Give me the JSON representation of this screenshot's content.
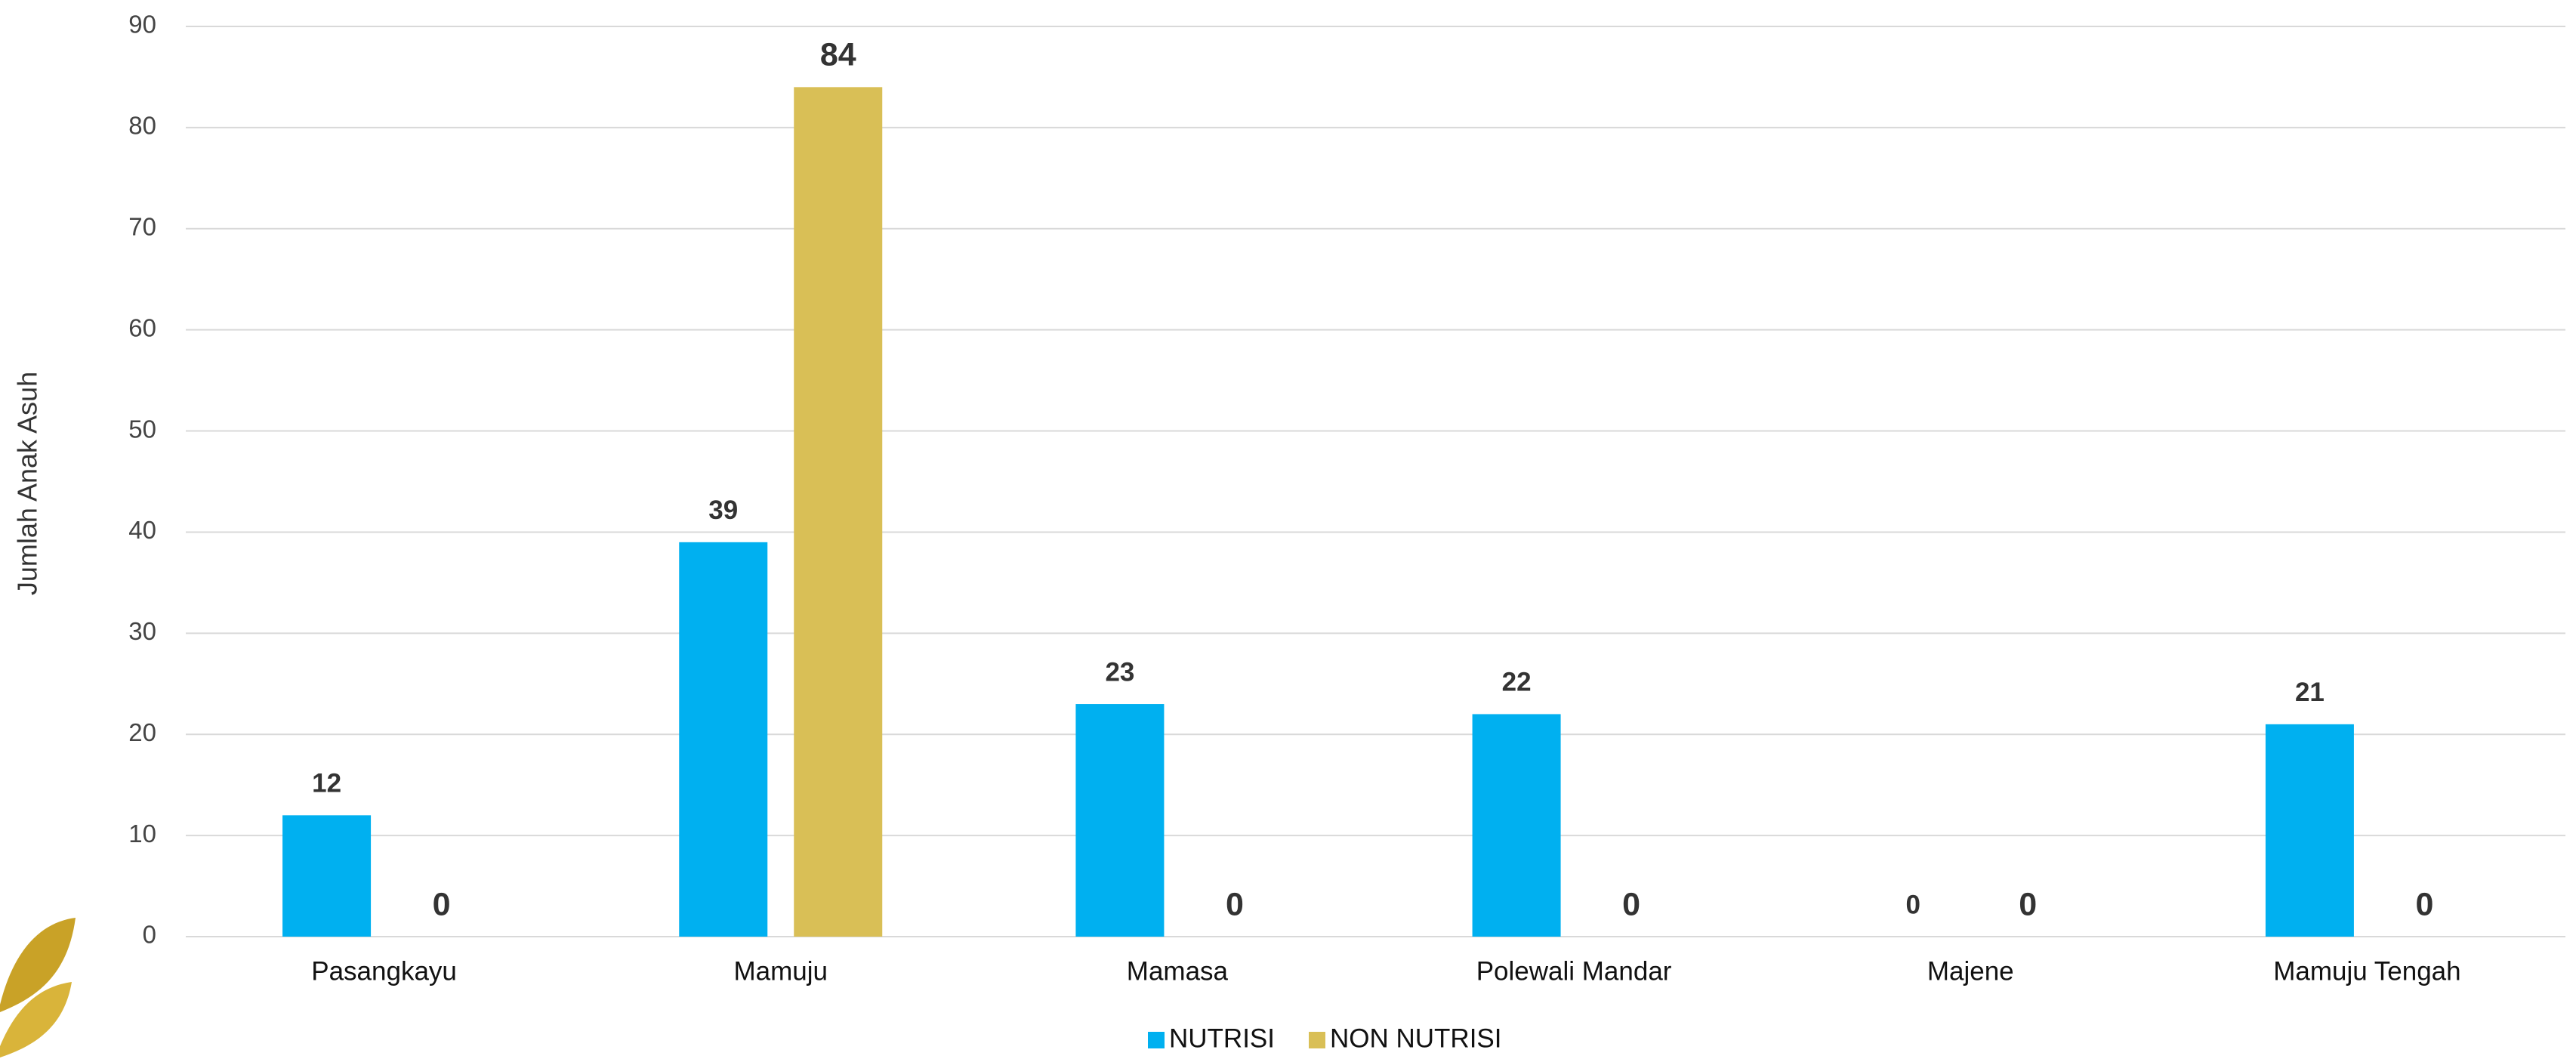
{
  "chart_data": {
    "type": "bar",
    "y_axis_label": "Jumlah Anak Asuh",
    "categories": [
      "Pasangkayu",
      "Mamuju",
      "Mamasa",
      "Polewali Mandar",
      "Majene",
      "Mamuju Tengah"
    ],
    "series": [
      {
        "name": "NUTRISI",
        "color": "#00b0f0",
        "values": [
          12,
          39,
          23,
          22,
          0,
          21
        ]
      },
      {
        "name": "NON NUTRISI",
        "color": "#d9bf56",
        "values": [
          0,
          84,
          0,
          0,
          0,
          0
        ]
      }
    ],
    "ylim": [
      0,
      90
    ],
    "yticks": [
      0,
      10,
      20,
      30,
      40,
      50,
      60,
      70,
      80,
      90
    ],
    "grid": true,
    "legend": "bottom"
  }
}
